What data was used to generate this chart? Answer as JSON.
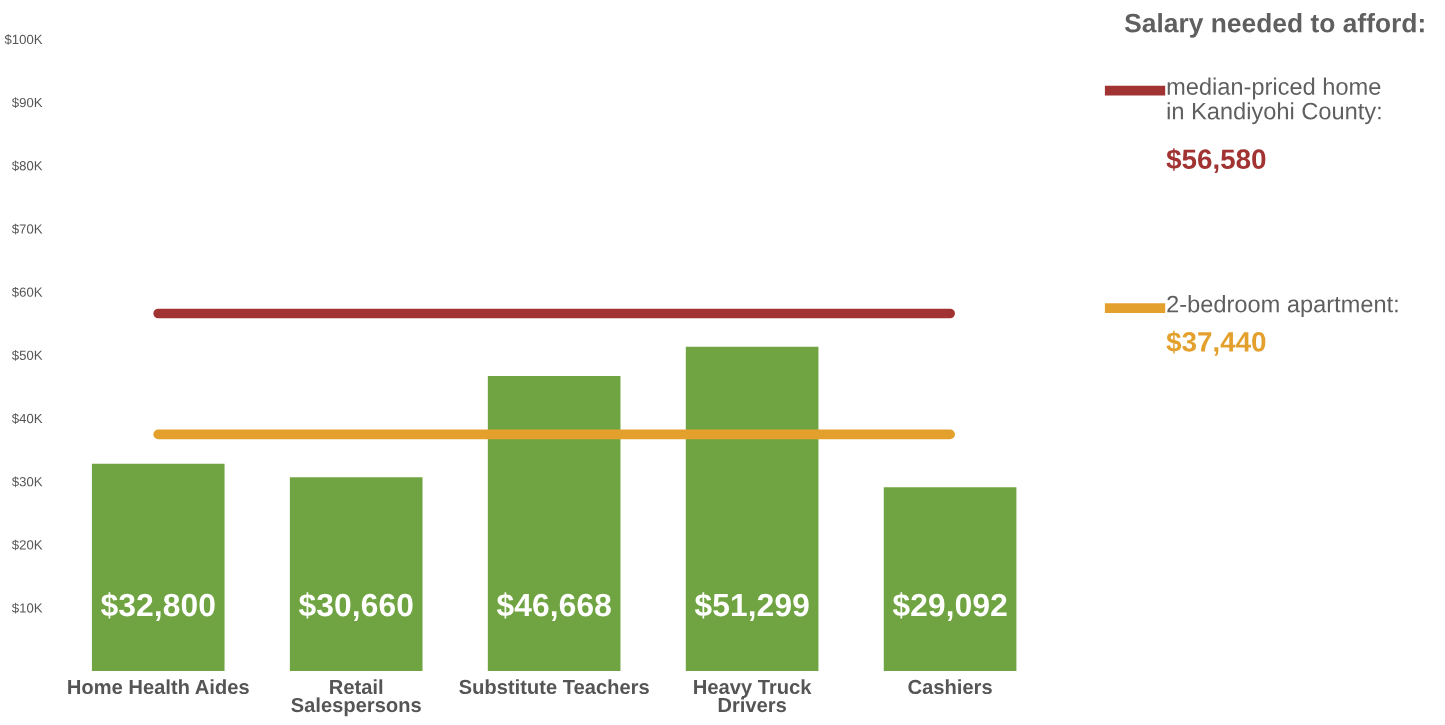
{
  "chart_data": {
    "type": "bar",
    "categories": [
      "Home Health Aides",
      "Retail\nSalespersons",
      "Substitute Teachers",
      "Heavy Truck\nDrivers",
      "Cashiers"
    ],
    "values": [
      32800,
      30660,
      46668,
      51299,
      29092
    ],
    "value_labels": [
      "$32,800",
      "$30,660",
      "$46,668",
      "$51,299",
      "$29,092"
    ],
    "color": "#70a442",
    "ylim": [
      0,
      100000
    ],
    "yticks": [
      {
        "value": 10000,
        "label": "$10K"
      },
      {
        "value": 20000,
        "label": "$20K"
      },
      {
        "value": 30000,
        "label": "$30K"
      },
      {
        "value": 40000,
        "label": "$40K"
      },
      {
        "value": 50000,
        "label": "$50K"
      },
      {
        "value": 60000,
        "label": "$60K"
      },
      {
        "value": 70000,
        "label": "$70K"
      },
      {
        "value": 80000,
        "label": "$80K"
      },
      {
        "value": 90000,
        "label": "$90K"
      },
      {
        "value": 100000,
        "label": "$100K"
      }
    ],
    "legend_title": "Salary needed to afford:",
    "ref_lines": [
      {
        "axis": "y",
        "value": 56580,
        "label": "median-priced home\nin Kandiyohi County:",
        "color": "#a13332"
      },
      {
        "axis": "y",
        "value": 37440,
        "label": "2-bedroom apartment:",
        "color": "#e3a02c"
      }
    ],
    "annotations": [
      "$56,580",
      "$37,440"
    ],
    "grid": false,
    "legend": "right"
  }
}
